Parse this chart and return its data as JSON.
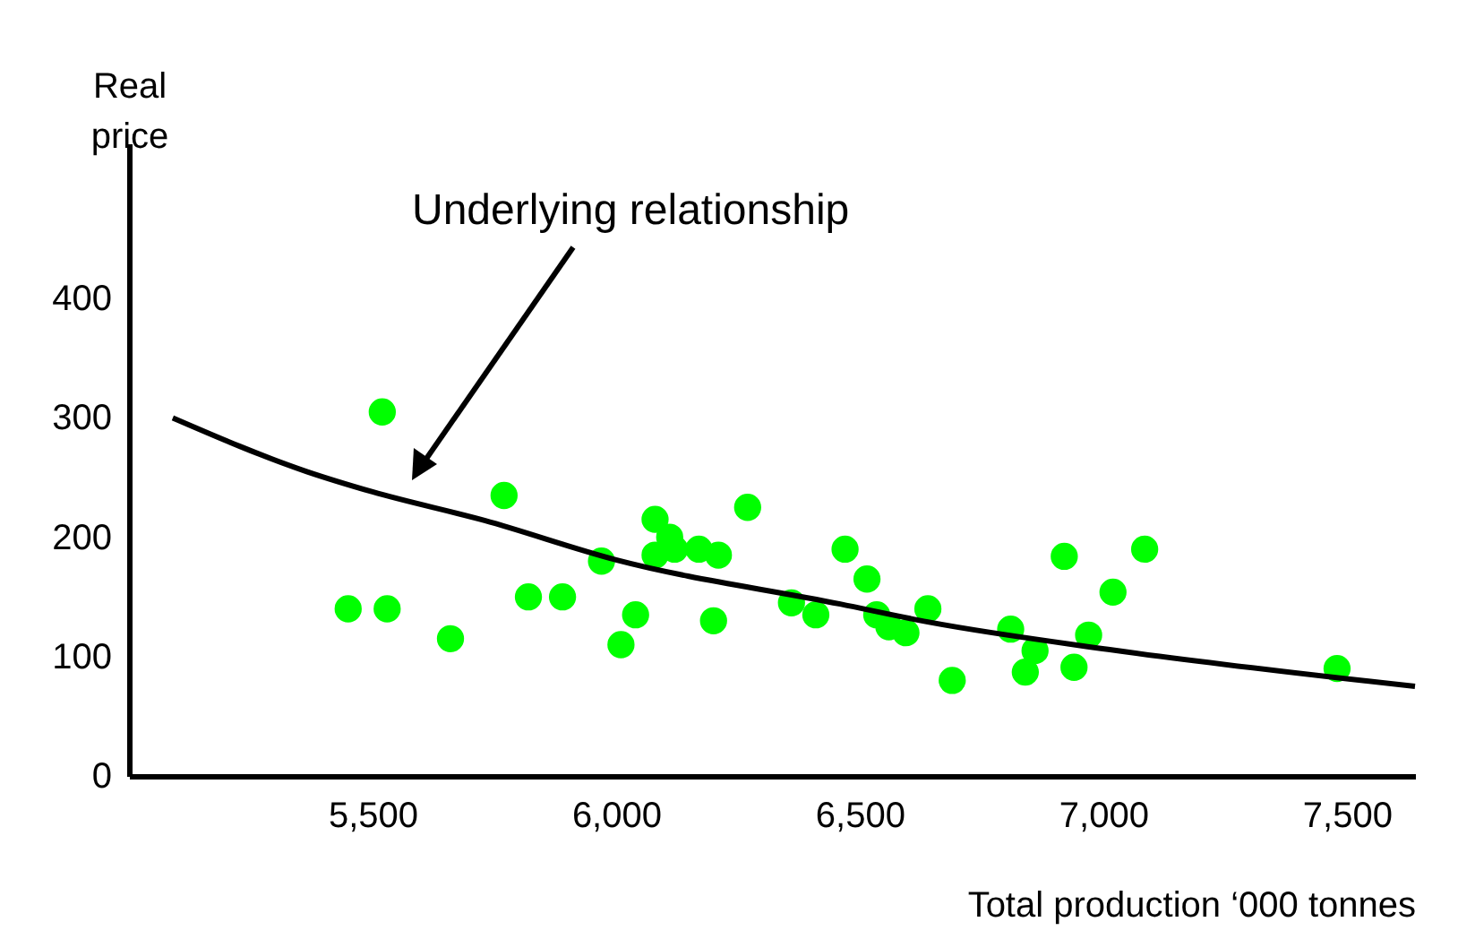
{
  "chart_data": {
    "type": "scatter",
    "xlabel": "Total production ‘000 tonnes",
    "ylabel": "Real price",
    "xlim": [
      5000,
      7640
    ],
    "xticks": [
      {
        "value": 5500,
        "label": "5,500"
      },
      {
        "value": 6000,
        "label": "6,000"
      },
      {
        "value": 6500,
        "label": "6,500"
      },
      {
        "value": 7000,
        "label": "7,000"
      },
      {
        "value": 7500,
        "label": "7,500"
      }
    ],
    "ylim": [
      0,
      530
    ],
    "yticks": [
      0,
      100,
      200,
      300,
      400
    ],
    "grid": false,
    "annotations": [
      "Underlying relationship"
    ],
    "series": [
      {
        "marker": "circle",
        "color": "#00ff00",
        "x": [
          5450,
          5520,
          5530,
          5660,
          5770,
          5820,
          5890,
          5970,
          6010,
          6040,
          6080,
          6080,
          6110,
          6120,
          6170,
          6210,
          6200,
          6270,
          6360,
          6410,
          6470,
          6515,
          6535,
          6560,
          6595,
          6640,
          6690,
          6810,
          6840,
          6860,
          6920,
          6940,
          6970,
          7020,
          7085,
          7480
        ],
        "values": [
          140,
          305,
          140,
          115,
          235,
          150,
          150,
          180,
          110,
          135,
          215,
          185,
          200,
          190,
          190,
          185,
          130,
          225,
          145,
          135,
          190,
          165,
          135,
          125,
          120,
          140,
          80,
          123,
          87,
          105,
          184,
          91,
          118,
          154,
          190,
          90
        ]
      },
      {
        "type": "line",
        "color": "#000000",
        "x": [
          5090,
          5365,
          5500,
          5730,
          6000,
          6460,
          6640,
          7010,
          7640
        ],
        "values": [
          300,
          255,
          238,
          214,
          181,
          144,
          129,
          106,
          75
        ]
      }
    ]
  }
}
